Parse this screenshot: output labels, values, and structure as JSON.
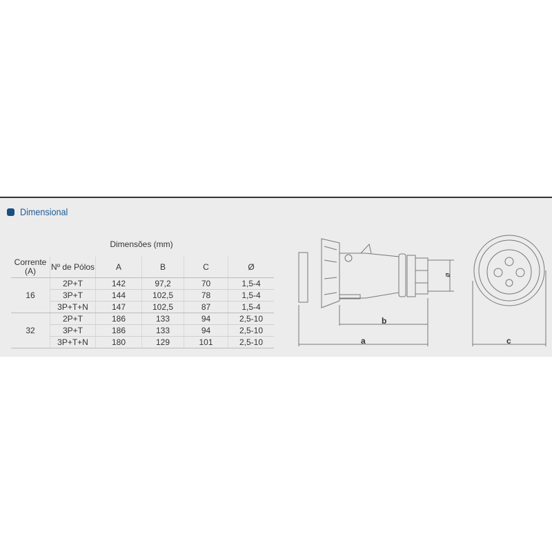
{
  "section_title": "Dimensional",
  "table": {
    "group_title": "Dimensões (mm)",
    "headers": [
      "Corrente (A)",
      "Nº de Pólos",
      "A",
      "B",
      "C",
      "Ø"
    ],
    "groups": [
      {
        "current": "16",
        "rows": [
          [
            "2P+T",
            "142",
            "97,2",
            "70",
            "1,5-4"
          ],
          [
            "3P+T",
            "144",
            "102,5",
            "78",
            "1,5-4"
          ],
          [
            "3P+T+N",
            "147",
            "102,5",
            "87",
            "1,5-4"
          ]
        ]
      },
      {
        "current": "32",
        "rows": [
          [
            "2P+T",
            "186",
            "133",
            "94",
            "2,5-10"
          ],
          [
            "3P+T",
            "186",
            "133",
            "94",
            "2,5-10"
          ],
          [
            "3P+T+N",
            "180",
            "129",
            "101",
            "2,5-10"
          ]
        ]
      }
    ]
  },
  "drawing": {
    "labels": {
      "a": "a",
      "b": "b",
      "c": "c",
      "d": "ø"
    }
  }
}
